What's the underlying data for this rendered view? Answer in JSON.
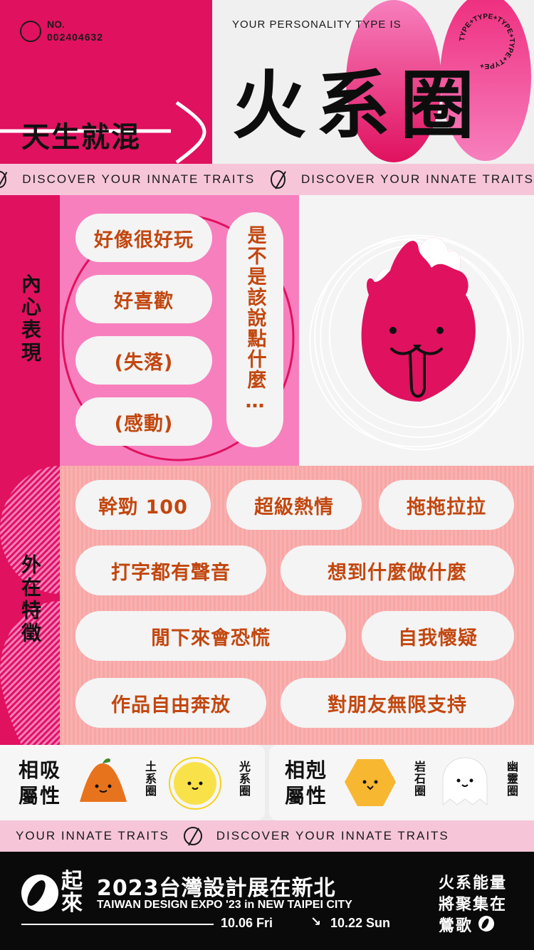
{
  "header": {
    "no_label": "NO.",
    "no_value": "002404632",
    "personality_caption": "YOUR PERSONALITY TYPE IS",
    "left_title": "天生就混",
    "type_title": "火系圈",
    "badge_text": "TYPE+TYPE+TYPE+TYPE+TYPE+"
  },
  "marquee_top": {
    "item1": "DISCOVER YOUR INNATE TRAITS",
    "item2": "DISCOVER YOUR INNATE TRAITS"
  },
  "inner": {
    "section_label": "內心表現",
    "pills": [
      "好像很好玩",
      "好喜歡",
      "(失落)",
      "(感動)"
    ],
    "vertical_pill": "是不是該說點什麼…"
  },
  "outer": {
    "section_label": "外在特徵",
    "pills": [
      "幹勁 100",
      "超級熱情",
      "拖拖拉拉",
      "打字都有聲音",
      "想到什麼做什麼",
      "閒下來會恐慌",
      "自我懷疑",
      "作品自由奔放",
      "對朋友無限支持"
    ]
  },
  "compat": {
    "attract_label": "相吸屬性",
    "attract_items": [
      "土系圈",
      "光系圈"
    ],
    "repel_label": "相剋屬性",
    "repel_items": [
      "岩石圈",
      "幽靈圈"
    ]
  },
  "marquee_bottom": {
    "item1": "YOUR INNATE TRAITS",
    "item2": "DISCOVER YOUR INNATE TRAITS"
  },
  "footer": {
    "logo_text": "起來",
    "expo_title": "2023台灣設計展在新北",
    "expo_subtitle": "TAIWAN DESIGN EXPO '23 in NEW TAIPEI CITY",
    "date_start": "10.06 Fri",
    "arrow": "↘",
    "date_end": "10.22 Sun",
    "tagline_line1": "火系能量",
    "tagline_line2": "將聚集在",
    "tagline_line3": "鶯歌"
  },
  "colors": {
    "magenta": "#e0115f",
    "pink": "#f77fbd",
    "salmon": "#f9a5a5",
    "text_orange": "#c2470f",
    "black": "#111111"
  }
}
